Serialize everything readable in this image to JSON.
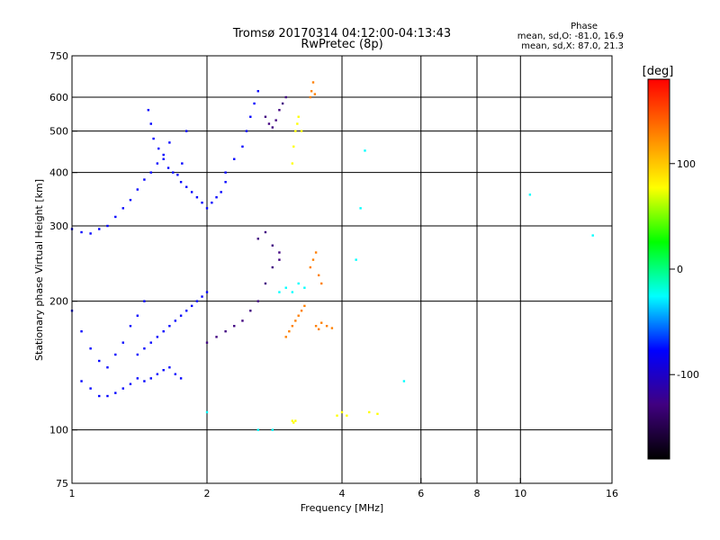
{
  "chart_data": {
    "type": "scatter",
    "title": "Tromsø 20170314 04:12:00-04:13:43",
    "subtitle": "RwPretec (8p)",
    "xlabel": "Frequency [MHz]",
    "ylabel": "Stationary phase Virtual Height [km]",
    "x_scale": "log",
    "y_scale": "log",
    "xlim": [
      1,
      16
    ],
    "ylim": [
      75,
      750
    ],
    "x_ticks": [
      1,
      2,
      4,
      6,
      8,
      10,
      16
    ],
    "y_ticks": [
      75,
      100,
      200,
      300,
      400,
      500,
      600,
      750
    ],
    "x_grid": [
      2,
      4,
      6,
      8,
      10
    ],
    "y_grid": [
      100,
      200,
      300,
      400,
      500,
      600
    ],
    "phase_info": {
      "heading": "Phase",
      "line1": "mean, sd,O: -81.0, 16.9",
      "line2": "mean, sd,X:  87.0, 21.3"
    },
    "colorbar": {
      "label": "[deg]",
      "range": [
        -180,
        180
      ],
      "ticks": [
        100,
        0,
        -100
      ],
      "colors": [
        "#ff0000",
        "#ff8000",
        "#ffff00",
        "#00ff00",
        "#00ffff",
        "#0000ff",
        "#400080",
        "#000000"
      ]
    },
    "series": [
      {
        "x": [
          1.0,
          1.05,
          1.1,
          1.15,
          1.2,
          1.25,
          1.3,
          1.35,
          1.4,
          1.45,
          1.5,
          1.55,
          1.6,
          1.65
        ],
        "y": [
          295,
          290,
          288,
          295,
          300,
          315,
          330,
          345,
          365,
          385,
          400,
          420,
          440,
          470
        ],
        "phase": -60
      },
      {
        "x": [
          1.48,
          1.5,
          1.52,
          1.56,
          1.6,
          1.64,
          1.68,
          1.72,
          1.76,
          1.8
        ],
        "y": [
          560,
          520,
          480,
          455,
          430,
          410,
          400,
          395,
          420,
          500
        ],
        "phase": -70
      },
      {
        "x": [
          1.75,
          1.8,
          1.85,
          1.9,
          1.95,
          2.0,
          2.05,
          2.1,
          2.15,
          2.2
        ],
        "y": [
          380,
          370,
          360,
          350,
          340,
          330,
          340,
          350,
          360,
          380
        ],
        "phase": -85
      },
      {
        "x": [
          2.2,
          2.3,
          2.4,
          2.45,
          2.5,
          2.55,
          2.6
        ],
        "y": [
          400,
          430,
          460,
          500,
          540,
          580,
          620
        ],
        "phase": -90
      },
      {
        "x": [
          2.7,
          2.75,
          2.8,
          2.85,
          2.9,
          2.95,
          3.0
        ],
        "y": [
          540,
          520,
          510,
          530,
          560,
          580,
          600
        ],
        "phase": -110
      },
      {
        "x": [
          3.1,
          3.12,
          3.15,
          3.18,
          3.2,
          3.25
        ],
        "y": [
          420,
          460,
          500,
          520,
          540,
          500
        ],
        "phase": 100
      },
      {
        "x": [
          3.4,
          3.42,
          3.45,
          3.48
        ],
        "y": [
          600,
          620,
          650,
          610
        ],
        "phase": 105
      },
      {
        "x": [
          1.0,
          1.05,
          1.1,
          1.15,
          1.2,
          1.25,
          1.3,
          1.35,
          1.4,
          1.45
        ],
        "y": [
          190,
          170,
          155,
          145,
          140,
          150,
          160,
          175,
          185,
          200
        ],
        "phase": -60
      },
      {
        "x": [
          1.05,
          1.1,
          1.15,
          1.2,
          1.25,
          1.3,
          1.35,
          1.4,
          1.45,
          1.5,
          1.55,
          1.6,
          1.65,
          1.7,
          1.75
        ],
        "y": [
          130,
          125,
          120,
          120,
          122,
          125,
          128,
          132,
          130,
          132,
          135,
          138,
          140,
          135,
          132
        ],
        "phase": -80
      },
      {
        "x": [
          1.4,
          1.45,
          1.5,
          1.55,
          1.6,
          1.65,
          1.7,
          1.75,
          1.8,
          1.85,
          1.9,
          1.95,
          2.0
        ],
        "y": [
          150,
          155,
          160,
          165,
          170,
          175,
          180,
          185,
          190,
          195,
          200,
          205,
          210
        ],
        "phase": -90
      },
      {
        "x": [
          2.0,
          2.1,
          2.2,
          2.3,
          2.4,
          2.5,
          2.6,
          2.7,
          2.8,
          2.9
        ],
        "y": [
          160,
          165,
          170,
          175,
          180,
          190,
          200,
          220,
          240,
          260
        ],
        "phase": -110
      },
      {
        "x": [
          2.6,
          2.7,
          2.8,
          2.9
        ],
        "y": [
          280,
          290,
          270,
          250
        ],
        "phase": -120
      },
      {
        "x": [
          2.9,
          3.0,
          3.1,
          3.2,
          3.3
        ],
        "y": [
          210,
          215,
          210,
          220,
          215
        ],
        "phase": -40
      },
      {
        "x": [
          3.0,
          3.05,
          3.1,
          3.15,
          3.2,
          3.25,
          3.3
        ],
        "y": [
          165,
          170,
          175,
          180,
          185,
          190,
          195
        ],
        "phase": 110
      },
      {
        "x": [
          3.4,
          3.45,
          3.5,
          3.55,
          3.6
        ],
        "y": [
          240,
          250,
          260,
          230,
          220
        ],
        "phase": 110
      },
      {
        "x": [
          3.5,
          3.55,
          3.6,
          3.7,
          3.8
        ],
        "y": [
          175,
          172,
          178,
          175,
          173
        ],
        "phase": 150
      },
      {
        "x": [
          3.1,
          3.12,
          3.15,
          3.9,
          4.0,
          4.1,
          4.6,
          4.8
        ],
        "y": [
          105,
          104,
          105,
          108,
          110,
          108,
          110,
          109
        ],
        "phase": 100
      },
      {
        "x": [
          2.0,
          2.6,
          2.8,
          4.3,
          4.4,
          4.5,
          5.5,
          10.5,
          14.5
        ],
        "y": [
          110,
          100,
          100,
          250,
          330,
          450,
          130,
          355,
          285
        ],
        "phase": -20
      }
    ]
  }
}
